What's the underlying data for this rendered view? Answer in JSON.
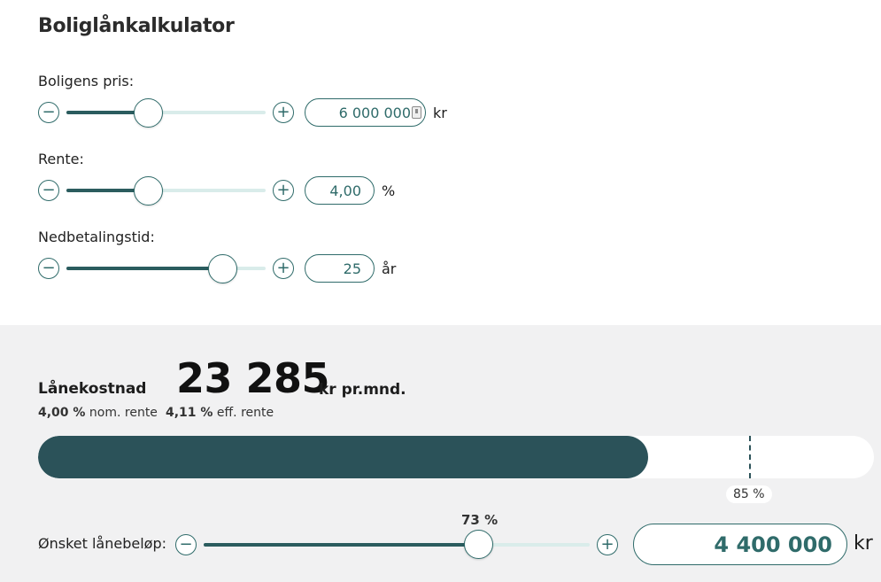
{
  "title": "Boliglånkalkulator",
  "price": {
    "label": "Boligens pris:",
    "value": "6 000 000",
    "unit": "kr",
    "level_fraction": 0.41
  },
  "rate": {
    "label": "Rente:",
    "value": "4,00",
    "unit": "%",
    "level_fraction": 0.41
  },
  "term": {
    "label": "Nedbetalingstid:",
    "value": "25",
    "unit": "år",
    "level_fraction": 0.78
  },
  "result": {
    "title": "Lånekostnad",
    "amount": "23 285",
    "per_month": "kr pr.mnd.",
    "nom_rate_value": "4,00 %",
    "nom_rate_label": "nom. rente",
    "eff_rate_value": "4,11 %",
    "eff_rate_label": "eff. rente",
    "progress_fraction": 0.73,
    "limit_label": "85 %",
    "limit_fraction": 0.85
  },
  "loan": {
    "label": "Ønsket lånebeløp:",
    "percent_label": "73 %",
    "value": "4 400 000",
    "unit": "kr",
    "level_fraction": 0.71
  },
  "buttons": {
    "minus": "−",
    "plus": "+"
  },
  "colors": {
    "accent": "#2f6b6a",
    "bar_fill": "#2b5259",
    "track": "#d9ecea",
    "lower_bg": "#f1f1f2"
  }
}
